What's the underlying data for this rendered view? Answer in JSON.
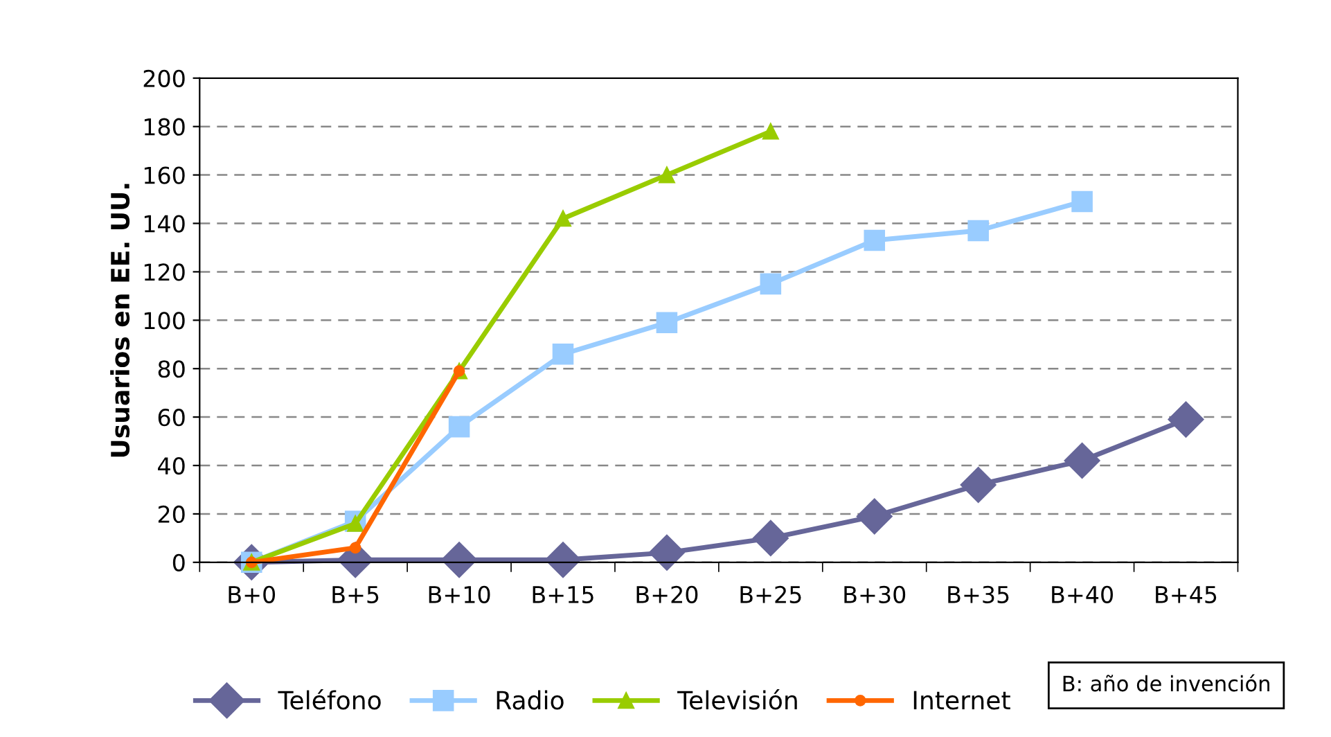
{
  "chart_data": {
    "type": "line",
    "ylabel": "Usuarios en EE. UU.",
    "categories": [
      "B+0",
      "B+5",
      "B+10",
      "B+15",
      "B+20",
      "B+25",
      "B+30",
      "B+35",
      "B+40",
      "B+45"
    ],
    "series": [
      {
        "name": "Teléfono",
        "color": "#666699",
        "marker": "diamond",
        "values": [
          0,
          1,
          1,
          1,
          4,
          10,
          19,
          32,
          42,
          59
        ]
      },
      {
        "name": "Radio",
        "color": "#99ccff",
        "marker": "square",
        "values": [
          0,
          17,
          56,
          86,
          99,
          115,
          133,
          137,
          149,
          null
        ]
      },
      {
        "name": "Televisión",
        "color": "#99cc00",
        "marker": "triangle",
        "values": [
          0,
          16,
          79,
          142,
          160,
          178,
          null,
          null,
          null,
          null
        ]
      },
      {
        "name": "Internet",
        "color": "#ff6600",
        "marker": "circle",
        "values": [
          0,
          6,
          79,
          null,
          null,
          null,
          null,
          null,
          null,
          null
        ]
      }
    ],
    "ylim": [
      0,
      200
    ],
    "yticks": [
      0,
      20,
      40,
      60,
      80,
      100,
      120,
      140,
      160,
      180,
      200
    ],
    "grid": "y",
    "legend": "bottom",
    "line_style": "solid",
    "annotations": [
      "B: año de invención"
    ]
  }
}
